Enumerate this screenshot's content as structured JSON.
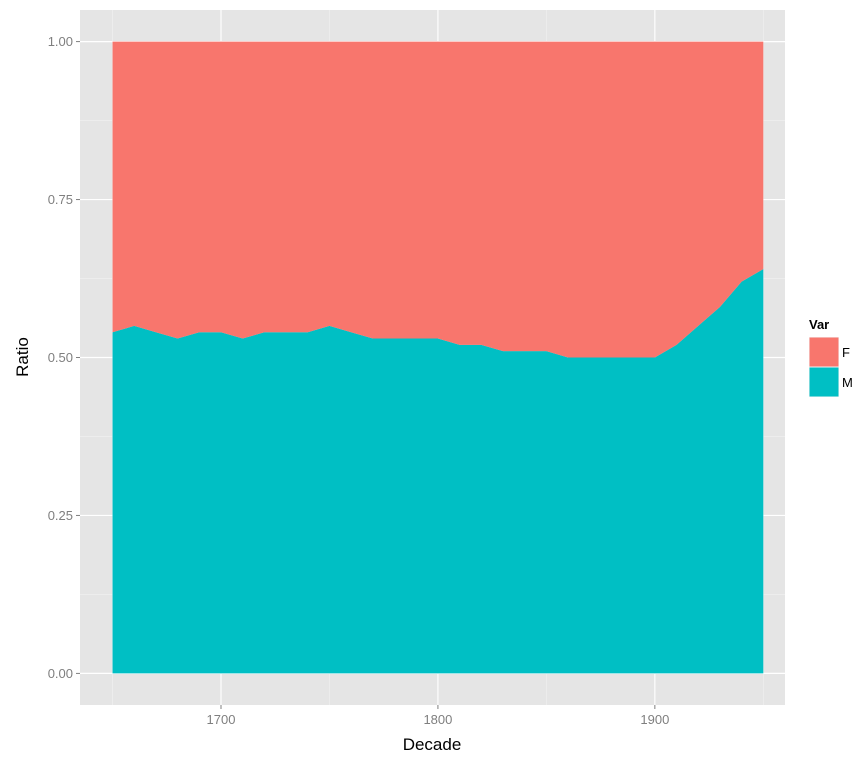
{
  "chart_data": {
    "type": "area",
    "stacked": true,
    "normalized": true,
    "title": "",
    "xlabel": "Decade",
    "ylabel": "Ratio",
    "x": [
      1650,
      1660,
      1670,
      1680,
      1690,
      1700,
      1710,
      1720,
      1730,
      1740,
      1750,
      1760,
      1770,
      1780,
      1790,
      1800,
      1810,
      1820,
      1830,
      1840,
      1850,
      1860,
      1870,
      1880,
      1890,
      1900,
      1910,
      1920,
      1930,
      1940,
      1950
    ],
    "series": [
      {
        "name": "M",
        "color": "#00bfc4",
        "values": [
          0.54,
          0.55,
          0.54,
          0.53,
          0.54,
          0.54,
          0.53,
          0.54,
          0.54,
          0.54,
          0.55,
          0.54,
          0.53,
          0.53,
          0.53,
          0.53,
          0.52,
          0.52,
          0.51,
          0.51,
          0.51,
          0.5,
          0.5,
          0.5,
          0.5,
          0.5,
          0.52,
          0.55,
          0.58,
          0.62,
          0.64
        ]
      },
      {
        "name": "F",
        "color": "#f8766d",
        "values": [
          0.46,
          0.45,
          0.46,
          0.47,
          0.46,
          0.46,
          0.47,
          0.46,
          0.46,
          0.46,
          0.45,
          0.46,
          0.47,
          0.47,
          0.47,
          0.47,
          0.48,
          0.48,
          0.49,
          0.49,
          0.49,
          0.5,
          0.5,
          0.5,
          0.5,
          0.5,
          0.48,
          0.45,
          0.42,
          0.38,
          0.36
        ]
      }
    ],
    "xlim": [
      1635,
      1960
    ],
    "ylim": [
      -0.05,
      1.05
    ],
    "xticks": [
      1700,
      1800,
      1900
    ],
    "xtick_labels": [
      "1700",
      "1800",
      "1900"
    ],
    "yticks": [
      0.0,
      0.25,
      0.5,
      0.75,
      1.0
    ],
    "ytick_labels": [
      "0.00",
      "0.25",
      "0.50",
      "0.75",
      "1.00"
    ],
    "grid": true,
    "panel_background": "#e5e5e5",
    "legend": {
      "title": "Var",
      "placement": "right",
      "entries": [
        {
          "label": "F",
          "color": "#f8766d"
        },
        {
          "label": "M",
          "color": "#00bfc4"
        }
      ]
    }
  }
}
